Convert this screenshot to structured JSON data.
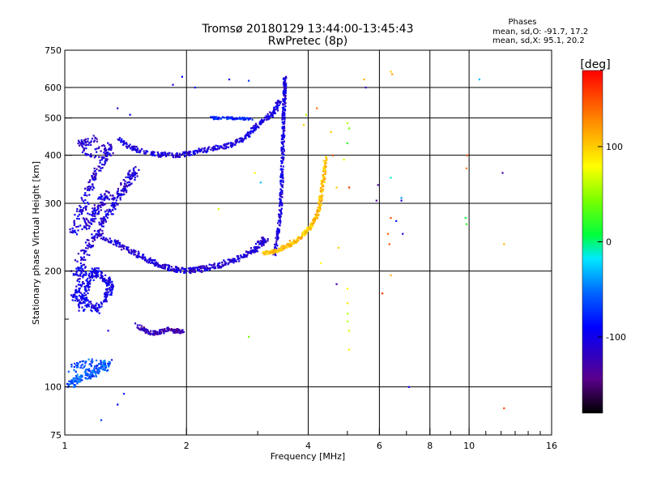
{
  "chart_data": {
    "type": "scatter",
    "title": "Tromsø 20180129 13:44:00-13:45:43",
    "subtitle": "RwPretec (8p)",
    "xlabel": "Frequency [MHz]",
    "ylabel": "Stationary phase Virtual Height [km]",
    "x_scale": "log",
    "y_scale": "log",
    "xlim": [
      1,
      16
    ],
    "ylim": [
      75,
      750
    ],
    "x_ticks": [
      1,
      2,
      4,
      6,
      8,
      10,
      16
    ],
    "x_tick_labels": [
      "1",
      "2",
      "4",
      "6",
      "8",
      "10",
      "16"
    ],
    "x_minor_ticks": [
      3,
      5,
      7,
      9,
      11,
      12,
      13,
      14,
      15
    ],
    "y_ticks": [
      75,
      100,
      200,
      300,
      400,
      500,
      600,
      750
    ],
    "y_tick_labels": [
      "75",
      "100",
      "200",
      "300",
      "400",
      "500",
      "600",
      "750"
    ],
    "y_minor_ticks": [
      150
    ],
    "grid": true,
    "phase_stats": {
      "heading": "Phases",
      "line_o": "mean, sd,O: -91.7, 17.2",
      "line_x": "mean, sd,X:  95.1, 20.2"
    },
    "colorbar": {
      "label": "[deg]",
      "range": [
        -180,
        180
      ],
      "ticks": [
        100,
        0,
        -100
      ],
      "tick_labels": [
        "100",
        "0",
        "-100"
      ],
      "colormap": "rainbow"
    },
    "traces": [
      {
        "pts": [
          [
            1.02,
            100
          ],
          [
            1.06,
            104
          ],
          [
            1.1,
            106
          ],
          [
            1.15,
            108
          ],
          [
            1.2,
            110
          ],
          [
            1.25,
            112
          ],
          [
            1.28,
            115
          ],
          [
            1.04,
            112
          ],
          [
            1.18,
            118
          ]
        ],
        "phase": -60,
        "spread": 0.022
      },
      {
        "pts": [
          [
            1.1,
            160
          ],
          [
            1.12,
            175
          ],
          [
            1.15,
            190
          ],
          [
            1.18,
            200
          ],
          [
            1.22,
            196
          ],
          [
            1.28,
            188
          ],
          [
            1.3,
            180
          ],
          [
            1.26,
            170
          ],
          [
            1.2,
            158
          ],
          [
            1.14,
            165
          ],
          [
            1.05,
            170
          ],
          [
            1.08,
            182
          ],
          [
            1.12,
            204
          ],
          [
            1.03,
            196
          ]
        ],
        "phase": -100,
        "spread": 0.02
      },
      {
        "pts": [
          [
            1.08,
            210
          ],
          [
            1.14,
            230
          ],
          [
            1.2,
            250
          ],
          [
            1.25,
            270
          ],
          [
            1.3,
            290
          ],
          [
            1.35,
            310
          ],
          [
            1.4,
            330
          ],
          [
            1.45,
            350
          ],
          [
            1.5,
            365
          ],
          [
            1.12,
            260
          ],
          [
            1.18,
            280
          ],
          [
            1.22,
            300
          ],
          [
            1.28,
            320
          ],
          [
            1.05,
            250
          ],
          [
            1.1,
            290
          ],
          [
            1.15,
            330
          ],
          [
            1.2,
            360
          ],
          [
            1.25,
            390
          ],
          [
            1.3,
            420
          ],
          [
            1.15,
            400
          ],
          [
            1.1,
            430
          ],
          [
            1.2,
            440
          ]
        ],
        "phase": -110,
        "spread": 0.022
      },
      {
        "pts": [
          [
            1.2,
            250
          ],
          [
            1.3,
            240
          ],
          [
            1.4,
            230
          ],
          [
            1.5,
            222
          ],
          [
            1.6,
            214
          ],
          [
            1.7,
            208
          ],
          [
            1.8,
            204
          ],
          [
            1.9,
            202
          ],
          [
            2.0,
            201
          ],
          [
            2.1,
            201
          ],
          [
            2.2,
            203
          ],
          [
            2.35,
            206
          ],
          [
            2.5,
            210
          ],
          [
            2.65,
            214
          ],
          [
            2.8,
            220
          ],
          [
            2.95,
            228
          ],
          [
            3.05,
            236
          ],
          [
            3.15,
            244
          ]
        ],
        "phase": -110,
        "spread": 0.014
      },
      {
        "pts": [
          [
            1.35,
            440
          ],
          [
            1.45,
            420
          ],
          [
            1.55,
            410
          ],
          [
            1.7,
            402
          ],
          [
            1.85,
            400
          ],
          [
            2.0,
            403
          ],
          [
            2.15,
            410
          ],
          [
            2.3,
            416
          ],
          [
            2.45,
            420
          ],
          [
            2.6,
            428
          ],
          [
            2.75,
            440
          ],
          [
            2.9,
            460
          ],
          [
            3.0,
            480
          ],
          [
            3.15,
            500
          ],
          [
            3.3,
            520
          ],
          [
            3.4,
            560
          ]
        ],
        "phase": -105,
        "spread": 0.012
      },
      {
        "pts": [
          [
            1.5,
            145
          ],
          [
            1.58,
            140
          ],
          [
            1.65,
            138
          ],
          [
            1.72,
            139
          ],
          [
            1.8,
            141
          ],
          [
            1.88,
            140
          ],
          [
            1.95,
            139
          ]
        ],
        "phase": -125,
        "spread": 0.01
      },
      {
        "pts": [
          [
            3.3,
            220
          ],
          [
            3.35,
            245
          ],
          [
            3.4,
            270
          ],
          [
            3.42,
            300
          ],
          [
            3.44,
            340
          ],
          [
            3.45,
            380
          ],
          [
            3.46,
            420
          ],
          [
            3.47,
            470
          ],
          [
            3.48,
            520
          ],
          [
            3.49,
            560
          ],
          [
            3.5,
            600
          ],
          [
            3.5,
            640
          ]
        ],
        "phase": -105,
        "spread": 0.008
      },
      {
        "pts": [
          [
            3.1,
            222
          ],
          [
            3.25,
            224
          ],
          [
            3.4,
            228
          ],
          [
            3.55,
            232
          ],
          [
            3.7,
            238
          ],
          [
            3.85,
            246
          ],
          [
            4.0,
            256
          ],
          [
            4.1,
            266
          ],
          [
            4.2,
            280
          ],
          [
            4.28,
            300
          ],
          [
            4.33,
            330
          ],
          [
            4.38,
            360
          ],
          [
            4.42,
            400
          ]
        ],
        "phase": 105,
        "spread": 0.009
      },
      {
        "pts": [
          [
            2.3,
            500
          ],
          [
            2.5,
            500
          ],
          [
            2.7,
            498
          ],
          [
            2.9,
            497
          ]
        ],
        "phase": -80,
        "spread": 0.006
      }
    ],
    "sparse": [
      [
        1.85,
        610,
        -105
      ],
      [
        1.95,
        640,
        -90
      ],
      [
        2.55,
        630,
        -95
      ],
      [
        2.85,
        625,
        -70
      ],
      [
        1.45,
        510,
        -90
      ],
      [
        1.35,
        530,
        -120
      ],
      [
        1.28,
        140,
        -100
      ],
      [
        1.4,
        96,
        -80
      ],
      [
        1.23,
        82,
        -70
      ],
      [
        1.35,
        90,
        -90
      ],
      [
        2.1,
        600,
        -80
      ],
      [
        2.95,
        360,
        80
      ],
      [
        3.05,
        340,
        -30
      ],
      [
        2.4,
        290,
        70
      ],
      [
        2.85,
        135,
        40
      ],
      [
        3.9,
        480,
        100
      ],
      [
        3.95,
        510,
        60
      ],
      [
        4.2,
        530,
        140
      ],
      [
        4.55,
        460,
        100
      ],
      [
        4.6,
        400,
        150
      ],
      [
        4.7,
        330,
        100
      ],
      [
        5.0,
        485,
        60
      ],
      [
        5.05,
        470,
        40
      ],
      [
        5.0,
        430,
        20
      ],
      [
        4.9,
        390,
        70
      ],
      [
        5.05,
        330,
        160
      ],
      [
        4.75,
        230,
        100
      ],
      [
        4.3,
        210,
        80
      ],
      [
        4.7,
        185,
        -130
      ],
      [
        5.0,
        180,
        80
      ],
      [
        5.0,
        165,
        90
      ],
      [
        5.0,
        155,
        60
      ],
      [
        5.0,
        148,
        60
      ],
      [
        5.05,
        140,
        70
      ],
      [
        5.05,
        125,
        80
      ],
      [
        5.5,
        630,
        110
      ],
      [
        5.55,
        600,
        -120
      ],
      [
        5.95,
        335,
        -140
      ],
      [
        5.9,
        305,
        -140
      ],
      [
        6.4,
        660,
        100
      ],
      [
        6.45,
        650,
        120
      ],
      [
        6.4,
        350,
        -10
      ],
      [
        6.4,
        275,
        150
      ],
      [
        6.3,
        250,
        140
      ],
      [
        6.35,
        235,
        150
      ],
      [
        6.4,
        195,
        110
      ],
      [
        6.6,
        270,
        -80
      ],
      [
        6.8,
        305,
        -100
      ],
      [
        6.85,
        250,
        -110
      ],
      [
        6.8,
        310,
        -40
      ],
      [
        7.1,
        100,
        -100
      ],
      [
        6.1,
        175,
        160
      ],
      [
        9.9,
        400,
        150
      ],
      [
        9.85,
        370,
        130
      ],
      [
        9.8,
        275,
        10
      ],
      [
        9.85,
        265,
        20
      ],
      [
        10.6,
        630,
        -30
      ],
      [
        12.1,
        360,
        -130
      ],
      [
        12.2,
        235,
        110
      ],
      [
        12.2,
        88,
        150
      ],
      [
        4.35,
        350,
        100
      ],
      [
        3.6,
        240,
        120
      ]
    ]
  }
}
